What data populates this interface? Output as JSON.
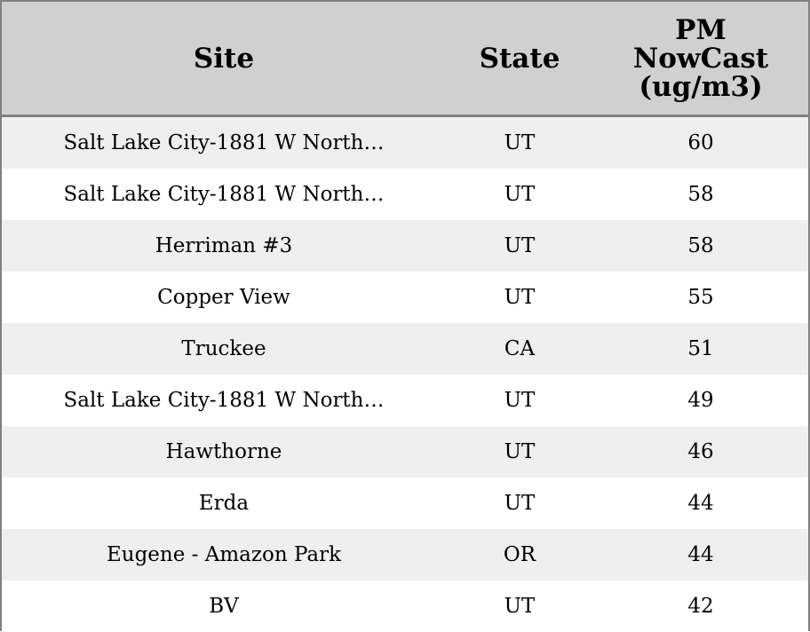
{
  "chart_data": {
    "type": "table",
    "columns": [
      "Site",
      "State",
      "PM NowCast (ug/m3)"
    ],
    "header_lines": [
      [
        "Site"
      ],
      [
        "State"
      ],
      [
        "PM",
        "NowCast",
        "(ug/m3)"
      ]
    ],
    "rows": [
      [
        "Salt Lake City-1881 W North…",
        "UT",
        "60"
      ],
      [
        "Salt Lake City-1881 W North…",
        "UT",
        "58"
      ],
      [
        "Herriman #3",
        "UT",
        "58"
      ],
      [
        "Copper View",
        "UT",
        "55"
      ],
      [
        "Truckee",
        "CA",
        "51"
      ],
      [
        "Salt Lake City-1881 W North…",
        "UT",
        "49"
      ],
      [
        "Hawthorne",
        "UT",
        "46"
      ],
      [
        "Erda",
        "UT",
        "44"
      ],
      [
        "Eugene - Amazon Park",
        "OR",
        "44"
      ],
      [
        "BV",
        "UT",
        "42"
      ]
    ],
    "colors": {
      "header_bg": "#d0d0d0",
      "row_alt_bg": "#efefef",
      "border": "#808080"
    }
  }
}
